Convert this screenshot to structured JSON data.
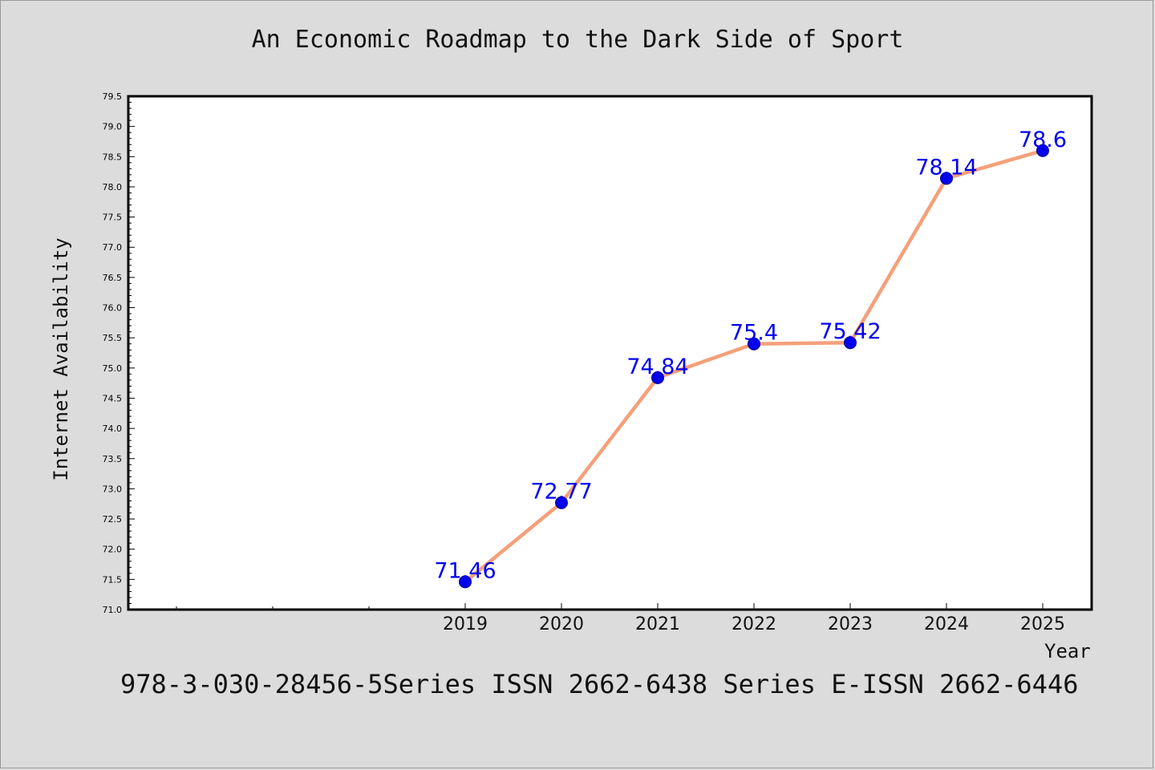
{
  "chart_data": {
    "type": "line",
    "title": "An Economic Roadmap to the Dark Side of Sport",
    "xlabel": "Year",
    "ylabel": "Internet Availability",
    "x": [
      "2019",
      "2020",
      "2021",
      "2022",
      "2023",
      "2024",
      "2025"
    ],
    "series": [
      {
        "values": [
          71.46,
          72.77,
          74.84,
          75.4,
          75.42,
          78.14,
          78.6
        ],
        "data_labels": [
          "71.46",
          "72.77",
          "74.84",
          "75.4",
          "75.42",
          "78.14",
          "78.6"
        ]
      }
    ],
    "ylim": [
      71.0,
      79.5
    ],
    "yticks": [
      "71.0",
      "71.5",
      "72.0",
      "72.5",
      "73.0",
      "73.5",
      "74.0",
      "74.5",
      "75.0",
      "75.5",
      "76.0",
      "76.5",
      "77.0",
      "77.5",
      "78.0",
      "78.5",
      "79.0",
      "79.5"
    ],
    "grid": false,
    "line_color": "#f4a07a",
    "marker_color": "#0000ee",
    "label_color": "#0000ee"
  },
  "footer_text": "978-3-030-28456-5Series ISSN 2662-6438 Series E-ISSN 2662-6446"
}
